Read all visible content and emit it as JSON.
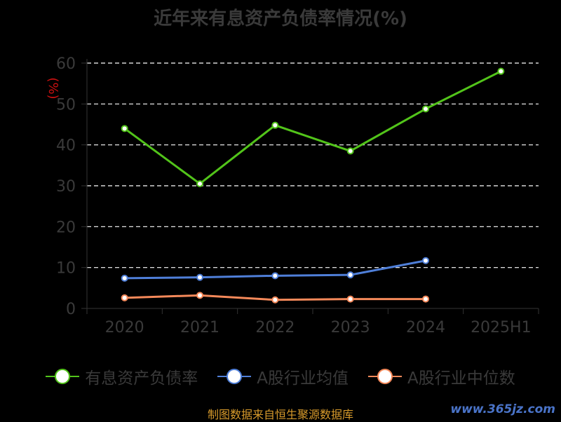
{
  "title": "近年来有息资产负债率情况(%)",
  "source": "制图数据来自恒生聚源数据库",
  "watermark": "www.365jz.com",
  "chart_data": {
    "type": "line",
    "title": "近年来有息资产负债率情况(%)",
    "ylabel": "(%)",
    "xlabel": "",
    "categories": [
      "2020",
      "2021",
      "2022",
      "2023",
      "2024",
      "2025H1"
    ],
    "ylim": [
      0,
      60
    ],
    "yticks": [
      0,
      10,
      20,
      30,
      40,
      50,
      60
    ],
    "grid": true,
    "legend_position": "bottom",
    "series": [
      {
        "name": "有息资产负债率",
        "color": "#52c41a",
        "values": [
          44.0,
          30.5,
          44.8,
          38.5,
          48.8,
          58.0
        ]
      },
      {
        "name": "A股行业均值",
        "color": "#4f7fd9",
        "values": [
          7.4,
          7.6,
          8.0,
          8.2,
          11.7,
          null
        ]
      },
      {
        "name": "A股行业中位数",
        "color": "#f5895a",
        "values": [
          2.6,
          3.2,
          2.1,
          2.3,
          2.3,
          null
        ]
      }
    ]
  }
}
